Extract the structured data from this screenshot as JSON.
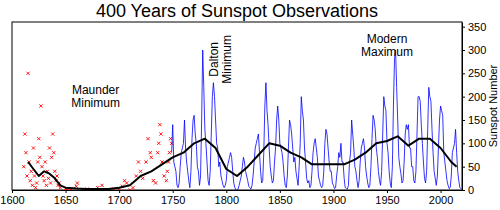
{
  "chart_data": {
    "type": "line",
    "title": "400 Years of Sunspot Observations",
    "y_label": "Sunspot Number",
    "xlim": [
      1600,
      2020
    ],
    "xticks": [
      1600,
      1650,
      1700,
      1750,
      1800,
      1850,
      1900,
      1950,
      2000
    ],
    "ylim": [
      0,
      360
    ],
    "yticks": [
      0,
      50,
      100,
      150,
      200,
      250,
      300,
      350
    ],
    "series": [
      {
        "type": "scatter",
        "color": "#ff0000",
        "marker": "x",
        "x": [
          1611,
          1612,
          1613,
          1614,
          1615,
          1616,
          1617,
          1618,
          1619,
          1620,
          1621,
          1622,
          1623,
          1624,
          1625,
          1626,
          1627,
          1628,
          1629,
          1630,
          1631,
          1632,
          1633,
          1634,
          1635,
          1636,
          1637,
          1638,
          1639,
          1640,
          1641,
          1642,
          1643,
          1644,
          1645,
          1650,
          1652,
          1655,
          1660,
          1661,
          1665,
          1670,
          1675,
          1680,
          1684,
          1690,
          1695,
          1700,
          1703,
          1705,
          1707,
          1710,
          1713,
          1716,
          1718,
          1720,
          1722,
          1725,
          1727,
          1729,
          1730,
          1732,
          1734,
          1736,
          1737,
          1738,
          1739,
          1740,
          1742,
          1744,
          1745,
          1746,
          1747,
          1748,
          1749
        ],
        "values": [
          50,
          120,
          80,
          30,
          250,
          60,
          20,
          40,
          10,
          90,
          30,
          5,
          15,
          60,
          110,
          70,
          180,
          50,
          30,
          20,
          60,
          10,
          40,
          25,
          90,
          15,
          70,
          120,
          80,
          40,
          20,
          30,
          10,
          15,
          5,
          3,
          0,
          2,
          8,
          15,
          0,
          2,
          0,
          5,
          10,
          0,
          2,
          3,
          8,
          20,
          15,
          0,
          5,
          30,
          60,
          40,
          25,
          60,
          110,
          80,
          70,
          20,
          15,
          80,
          100,
          140,
          120,
          60,
          30,
          20,
          40,
          60,
          80,
          110,
          100
        ]
      },
      {
        "type": "line",
        "color": "#0000ff",
        "x": [
          1749,
          1750,
          1751,
          1752,
          1753,
          1754,
          1755,
          1756,
          1757,
          1758,
          1759,
          1760,
          1761,
          1762,
          1763,
          1764,
          1765,
          1766,
          1767,
          1768,
          1769,
          1770,
          1771,
          1772,
          1773,
          1774,
          1775,
          1776,
          1777,
          1778,
          1779,
          1780,
          1781,
          1782,
          1783,
          1784,
          1785,
          1786,
          1787,
          1788,
          1789,
          1790,
          1791,
          1792,
          1793,
          1794,
          1795,
          1796,
          1797,
          1798,
          1799,
          1800,
          1801,
          1802,
          1803,
          1804,
          1805,
          1806,
          1807,
          1808,
          1809,
          1810,
          1811,
          1812,
          1813,
          1814,
          1815,
          1816,
          1817,
          1818,
          1819,
          1820,
          1821,
          1822,
          1823,
          1824,
          1825,
          1826,
          1827,
          1828,
          1829,
          1830,
          1831,
          1832,
          1833,
          1834,
          1835,
          1836,
          1837,
          1838,
          1839,
          1840,
          1841,
          1842,
          1843,
          1844,
          1845,
          1846,
          1847,
          1848,
          1849,
          1850,
          1851,
          1852,
          1853,
          1854,
          1855,
          1856,
          1857,
          1858,
          1859,
          1860,
          1861,
          1862,
          1863,
          1864,
          1865,
          1866,
          1867,
          1868,
          1869,
          1870,
          1871,
          1872,
          1873,
          1874,
          1875,
          1876,
          1877,
          1878,
          1879,
          1880,
          1881,
          1882,
          1883,
          1884,
          1885,
          1886,
          1887,
          1888,
          1889,
          1890,
          1891,
          1892,
          1893,
          1894,
          1895,
          1896,
          1897,
          1898,
          1899,
          1900,
          1901,
          1902,
          1903,
          1904,
          1905,
          1906,
          1907,
          1908,
          1909,
          1910,
          1911,
          1912,
          1913,
          1914,
          1915,
          1916,
          1917,
          1918,
          1919,
          1920,
          1921,
          1922,
          1923,
          1924,
          1925,
          1926,
          1927,
          1928,
          1929,
          1930,
          1931,
          1932,
          1933,
          1934,
          1935,
          1936,
          1937,
          1938,
          1939,
          1940,
          1941,
          1942,
          1943,
          1944,
          1945,
          1946,
          1947,
          1948,
          1949,
          1950,
          1951,
          1952,
          1953,
          1954,
          1955,
          1956,
          1957,
          1958,
          1959,
          1960,
          1961,
          1962,
          1963,
          1964,
          1965,
          1966,
          1967,
          1968,
          1969,
          1970,
          1971,
          1972,
          1973,
          1974,
          1975,
          1976,
          1977,
          1978,
          1979,
          1980,
          1981,
          1982,
          1983,
          1984,
          1985,
          1986,
          1987,
          1988,
          1989,
          1990,
          1991,
          1992,
          1993,
          1994,
          1995,
          1996,
          1997,
          1998,
          1999,
          2000,
          2001,
          2002,
          2003,
          2004,
          2005,
          2006,
          2007,
          2008,
          2009,
          2010,
          2011,
          2012,
          2013,
          2014,
          2015,
          2016,
          2017,
          2018,
          2019
        ],
        "values": [
          80,
          140,
          60,
          50,
          40,
          10,
          5,
          15,
          50,
          80,
          90,
          100,
          150,
          90,
          60,
          40,
          20,
          5,
          40,
          110,
          150,
          160,
          120,
          100,
          50,
          40,
          10,
          30,
          150,
          300,
          220,
          130,
          100,
          60,
          20,
          10,
          40,
          120,
          200,
          230,
          200,
          150,
          100,
          90,
          50,
          60,
          30,
          20,
          10,
          5,
          10,
          20,
          50,
          60,
          70,
          80,
          70,
          40,
          15,
          5,
          0,
          0,
          2,
          10,
          20,
          30,
          50,
          70,
          60,
          40,
          30,
          20,
          8,
          5,
          2,
          10,
          30,
          60,
          90,
          100,
          110,
          120,
          80,
          40,
          15,
          20,
          80,
          180,
          230,
          170,
          140,
          90,
          50,
          30,
          15,
          20,
          60,
          90,
          150,
          180,
          150,
          100,
          90,
          80,
          60,
          30,
          10,
          5,
          30,
          90,
          150,
          140,
          120,
          90,
          60,
          70,
          40,
          25,
          10,
          50,
          100,
          200,
          170,
          150,
          90,
          60,
          25,
          15,
          20,
          5,
          10,
          40,
          80,
          100,
          110,
          90,
          70,
          30,
          20,
          10,
          5,
          10,
          40,
          100,
          130,
          120,
          90,
          60,
          40,
          40,
          15,
          10,
          3,
          5,
          30,
          50,
          80,
          70,
          100,
          60,
          60,
          25,
          5,
          3,
          2,
          10,
          60,
          80,
          150,
          120,
          90,
          50,
          40,
          20,
          5,
          20,
          60,
          90,
          100,
          110,
          90,
          50,
          30,
          15,
          5,
          10,
          50,
          110,
          160,
          150,
          130,
          90,
          70,
          40,
          20,
          10,
          40,
          120,
          200,
          180,
          170,
          100,
          80,
          40,
          15,
          5,
          50,
          180,
          280,
          300,
          220,
          150,
          70,
          50,
          35,
          15,
          20,
          60,
          120,
          140,
          130,
          140,
          90,
          90,
          50,
          50,
          20,
          15,
          40,
          120,
          200,
          200,
          190,
          140,
          100,
          60,
          25,
          15,
          40,
          130,
          220,
          200,
          190,
          130,
          80,
          40,
          25,
          10,
          30,
          90,
          150,
          180,
          170,
          160,
          80,
          60,
          40,
          20,
          10,
          3,
          5,
          30,
          80,
          90,
          100,
          130,
          80,
          40,
          20,
          5,
          3
        ]
      },
      {
        "type": "line",
        "color": "#000000",
        "x": [
          1615,
          1620,
          1625,
          1630,
          1635,
          1640,
          1645,
          1650,
          1660,
          1670,
          1680,
          1690,
          1700,
          1710,
          1715,
          1720,
          1730,
          1740,
          1750,
          1760,
          1770,
          1780,
          1790,
          1800,
          1810,
          1820,
          1830,
          1840,
          1850,
          1860,
          1870,
          1880,
          1890,
          1900,
          1910,
          1920,
          1930,
          1940,
          1950,
          1960,
          1970,
          1980,
          1990,
          2000,
          2010,
          2015
        ],
        "values": [
          60,
          45,
          30,
          40,
          35,
          25,
          10,
          5,
          3,
          2,
          2,
          2,
          5,
          10,
          20,
          30,
          40,
          55,
          70,
          80,
          100,
          110,
          90,
          45,
          30,
          50,
          75,
          100,
          95,
          80,
          70,
          55,
          55,
          55,
          55,
          65,
          80,
          100,
          105,
          115,
          95,
          110,
          110,
          90,
          60,
          50
        ]
      }
    ],
    "annotations": [
      {
        "text": "Maunder Minimum",
        "x": 1678,
        "y": 200
      },
      {
        "text": "Dalton Minimum",
        "x": 1795,
        "y": 280
      },
      {
        "text": "Modern Maximum",
        "x": 1950,
        "y": 310
      }
    ]
  }
}
